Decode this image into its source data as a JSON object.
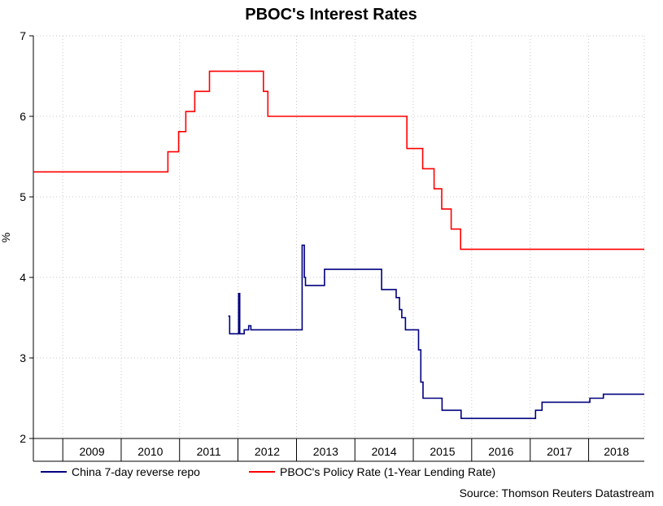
{
  "chart_data": {
    "type": "line",
    "title": "PBOC's Interest Rates",
    "ylabel": "%",
    "xlabel": "",
    "ylim": [
      2,
      7
    ],
    "xlim": [
      "2008-07-01",
      "2018-12-15"
    ],
    "y_ticks": [
      2,
      3,
      4,
      5,
      6,
      7
    ],
    "x_ticks": [
      "2009",
      "2010",
      "2011",
      "2012",
      "2013",
      "2014",
      "2015",
      "2016",
      "2017",
      "2018"
    ],
    "grid": true,
    "legend_position": "bottom",
    "source": "Source: Thomson Reuters Datastream",
    "series": [
      {
        "name": "China 7-day reverse repo",
        "color": "#00007f",
        "step": true,
        "points": [
          [
            "2011-11-01",
            3.52
          ],
          [
            "2011-11-10",
            3.3
          ],
          [
            "2011-12-28",
            3.3
          ],
          [
            "2012-01-05",
            3.8
          ],
          [
            "2012-01-12",
            3.3
          ],
          [
            "2012-02-09",
            3.35
          ],
          [
            "2012-03-01",
            3.35
          ],
          [
            "2012-03-08",
            3.4
          ],
          [
            "2012-03-22",
            3.35
          ],
          [
            "2013-01-31",
            3.35
          ],
          [
            "2013-02-05",
            4.4
          ],
          [
            "2013-02-19",
            4.0
          ],
          [
            "2013-02-26",
            3.9
          ],
          [
            "2013-06-18",
            3.9
          ],
          [
            "2013-06-25",
            4.1
          ],
          [
            "2014-06-03",
            4.1
          ],
          [
            "2014-06-17",
            3.85
          ],
          [
            "2014-08-01",
            3.85
          ],
          [
            "2014-09-16",
            3.75
          ],
          [
            "2014-10-07",
            3.6
          ],
          [
            "2014-10-21",
            3.5
          ],
          [
            "2014-11-13",
            3.35
          ],
          [
            "2015-01-27",
            3.35
          ],
          [
            "2015-02-03",
            3.1
          ],
          [
            "2015-02-17",
            2.7
          ],
          [
            "2015-03-03",
            2.5
          ],
          [
            "2015-06-25",
            2.5
          ],
          [
            "2015-06-30",
            2.35
          ],
          [
            "2015-09-03",
            2.35
          ],
          [
            "2015-10-27",
            2.25
          ],
          [
            "2017-01-24",
            2.25
          ],
          [
            "2017-02-03",
            2.35
          ],
          [
            "2017-03-16",
            2.45
          ],
          [
            "2017-12-14",
            2.45
          ],
          [
            "2018-01-09",
            2.5
          ],
          [
            "2018-03-22",
            2.5
          ],
          [
            "2018-04-03",
            2.55
          ],
          [
            "2018-12-15",
            2.55
          ]
        ]
      },
      {
        "name": "PBOC's Policy Rate (1-Year Lending Rate)",
        "color": "#ff0000",
        "step": true,
        "points": [
          [
            "2008-07-01",
            5.31
          ],
          [
            "2010-10-20",
            5.56
          ],
          [
            "2010-12-26",
            5.81
          ],
          [
            "2011-02-09",
            6.06
          ],
          [
            "2011-04-06",
            6.31
          ],
          [
            "2011-07-07",
            6.56
          ],
          [
            "2012-06-08",
            6.31
          ],
          [
            "2012-07-06",
            6.0
          ],
          [
            "2014-11-22",
            5.6
          ],
          [
            "2015-03-01",
            5.35
          ],
          [
            "2015-05-11",
            5.1
          ],
          [
            "2015-06-28",
            4.85
          ],
          [
            "2015-08-26",
            4.6
          ],
          [
            "2015-10-24",
            4.35
          ],
          [
            "2018-12-15",
            4.35
          ]
        ]
      }
    ]
  }
}
